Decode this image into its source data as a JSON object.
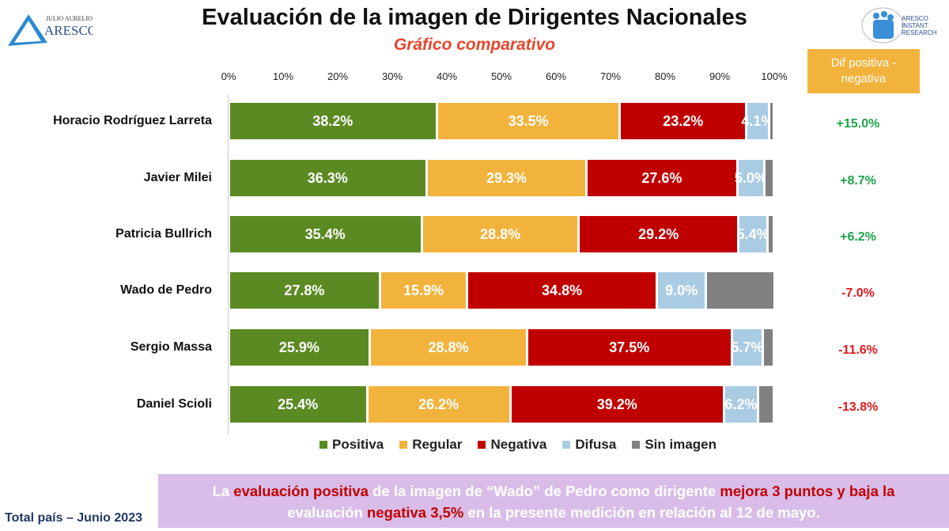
{
  "header": {
    "title": "Evaluación de la imagen de Dirigentes Nacionales",
    "subtitle": "Gráfico comparativo",
    "logo_left_text": "JULIO AURELIO ARESCO",
    "logo_right_text": "ARESCO INSTANT RESEARCH"
  },
  "dif_header": "Dif positiva - negativa",
  "chart_data": {
    "type": "bar",
    "orientation": "horizontal",
    "stacked": true,
    "xlim": [
      0,
      100
    ],
    "x_ticks": [
      "0%",
      "10%",
      "20%",
      "30%",
      "40%",
      "50%",
      "60%",
      "70%",
      "80%",
      "90%",
      "100%"
    ],
    "categories": [
      "Horacio Rodríguez Larreta",
      "Javier Milei",
      "Patricia Bullrich",
      "Wado de Pedro",
      "Sergio Massa",
      "Daniel Scioli"
    ],
    "series": [
      {
        "name": "Positiva",
        "color": "#5b8a23",
        "values": [
          38.2,
          36.3,
          35.4,
          27.8,
          25.9,
          25.4
        ]
      },
      {
        "name": "Regular",
        "color": "#f2b33d",
        "values": [
          33.5,
          29.3,
          28.8,
          15.9,
          28.8,
          26.2
        ]
      },
      {
        "name": "Negativa",
        "color": "#c00000",
        "values": [
          23.2,
          27.6,
          29.2,
          34.8,
          37.5,
          39.2
        ]
      },
      {
        "name": "Difusa",
        "color": "#a9cce3",
        "values": [
          4.1,
          5.0,
          5.4,
          9.0,
          5.7,
          6.2
        ]
      },
      {
        "name": "Sin imagen",
        "color": "#808080",
        "values": [
          1.0,
          1.8,
          1.2,
          12.5,
          2.1,
          3.0
        ]
      }
    ],
    "labeled_series": [
      "Positiva",
      "Regular",
      "Negativa",
      "Difusa"
    ],
    "legend": "bottom",
    "dif": [
      "+15.0%",
      "+8.7%",
      "+6.2%",
      "-7.0%",
      "-11.6%",
      "-13.8%"
    ],
    "dif_colors": {
      "positive": "#1fa34a",
      "negative": "#e0191e"
    }
  },
  "footer": {
    "left": "Total país – Junio 2023",
    "banner": [
      "La ",
      "evaluación positiva",
      " de la imagen de “Wado” de Pedro como dirigente ",
      "mejora 3 puntos y baja la",
      " evaluación ",
      "negativa 3,5%",
      " en la presente medición en relación al 12 de mayo."
    ]
  }
}
